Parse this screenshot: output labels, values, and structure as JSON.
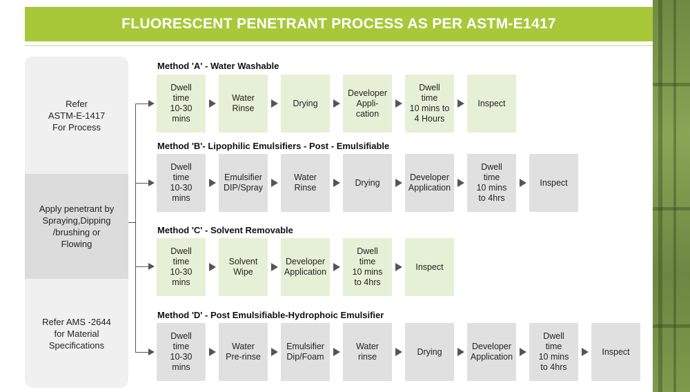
{
  "header": {
    "title": "FLUORESCENT PENETRANT PROCESS AS PER ASTM-E1417"
  },
  "left_panel": {
    "top": "Refer\nASTM-E-1417\nFor Process",
    "middle": "Apply penetrant by\nSpraying,Dipping\n/brushing or\nFlowing",
    "bottom": "Refer AMS -2644\nfor Material\nSpecifications"
  },
  "methods": [
    {
      "title": "Method 'A' - Water Washable",
      "style": "green",
      "steps": [
        "Dwell\ntime\n10-30\nmins",
        "Water\nRinse",
        "Drying",
        "Developer\nAppli-\ncation",
        "Dwell\ntime\n10 mins to\n4 Hours",
        "Inspect"
      ]
    },
    {
      "title": "Method 'B'- Lipophilic Emulsifiers - Post - Emulsifiable",
      "style": "grey",
      "steps": [
        "Dwell\ntime\n10-30\nmins",
        "Emulsifier\nDIP/Spray",
        "Water\nRinse",
        "Drying",
        "Developer\nApplication",
        "Dwell\ntime\n10 mins\nto 4hrs",
        "Inspect"
      ]
    },
    {
      "title": "Method 'C' - Solvent Removable",
      "style": "green",
      "steps": [
        "Dwell\ntime\n10-30\nmins",
        "Solvent\nWipe",
        "Developer\nApplication",
        "Dwell\ntime\n10 mins\nto 4hrs",
        "Inspect"
      ]
    },
    {
      "title": "Method 'D' - Post Emulsifiable-Hydrophoic Emulsifier",
      "style": "grey",
      "steps": [
        "Dwell\ntime\n10-30\nmins",
        "Water\nPre-rinse",
        "Emulsifier\nDip/Foam",
        "Water\nrinse",
        "Drying",
        "Developer\nApplication",
        "Dwell\ntime\n10 mins\nto 4hrs",
        "Inspect"
      ]
    }
  ],
  "colors": {
    "header": "#a8c83a",
    "green_step": "#e6f0d6",
    "grey_step": "#e0e0e0",
    "arrow": "#555555"
  }
}
